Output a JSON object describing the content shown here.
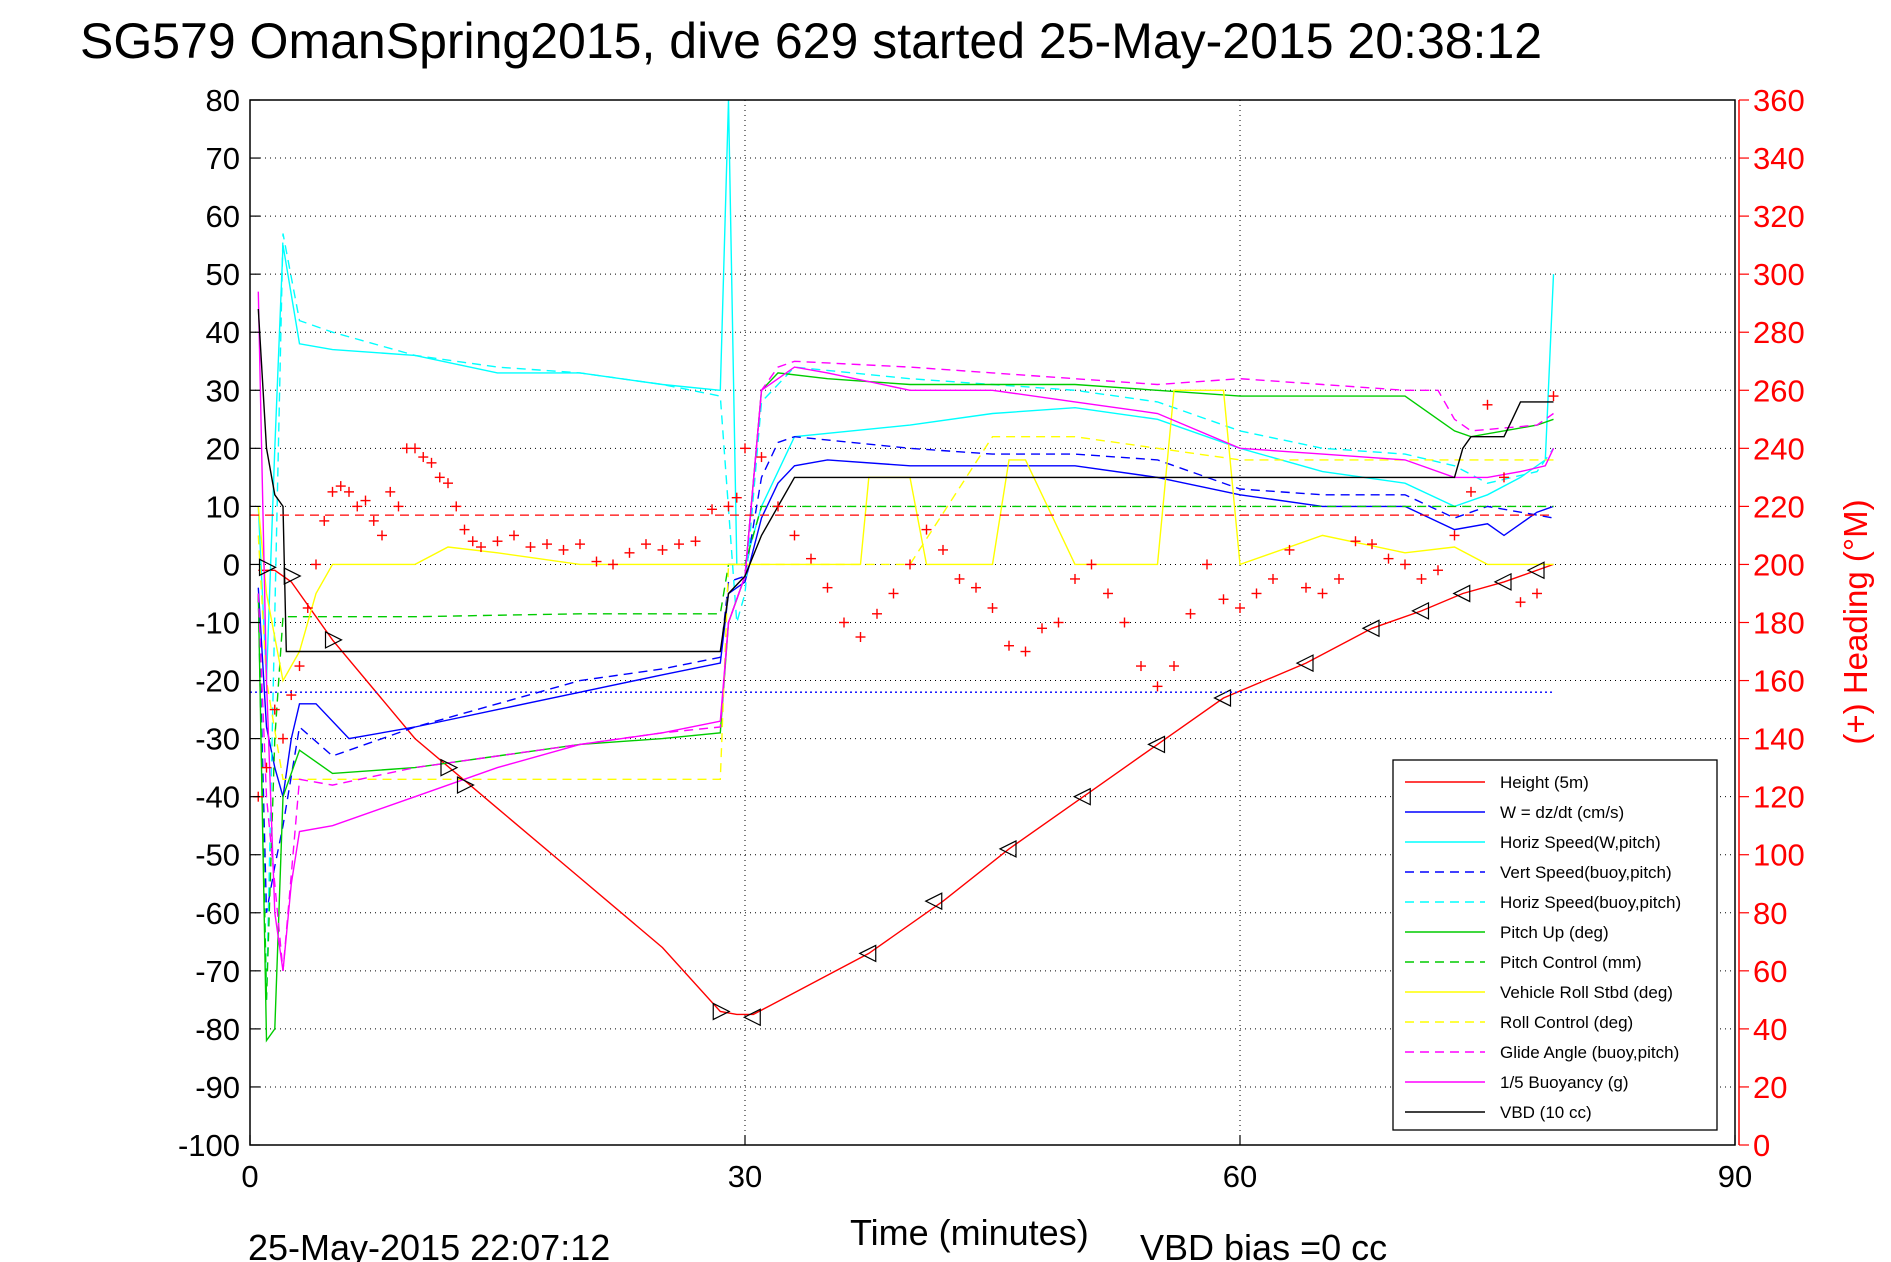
{
  "chart_data": {
    "type": "line",
    "title": "SG579 OmanSpring2015, dive 629 started 25-May-2015 20:38:12",
    "xlabel": "Time (minutes)",
    "ylabel_right": "(+) Heading (°M)",
    "xlim": [
      0,
      90
    ],
    "ylim": [
      -100,
      80
    ],
    "y2lim": [
      0,
      360
    ],
    "x_ticks": [
      "0",
      "30",
      "60",
      "90"
    ],
    "y_ticks": [
      "80",
      "70",
      "60",
      "50",
      "40",
      "30",
      "20",
      "10",
      "0",
      "-10",
      "-20",
      "-30",
      "-40",
      "-50",
      "-60",
      "-70",
      "-80",
      "-90",
      "-100"
    ],
    "y2_ticks": [
      "360",
      "340",
      "320",
      "300",
      "280",
      "260",
      "240",
      "220",
      "200",
      "180",
      "160",
      "140",
      "120",
      "100",
      "80",
      "60",
      "40",
      "20",
      "0"
    ],
    "grid": true,
    "legend_position": "bottom-right",
    "footer_left": "25-May-2015 22:07:12",
    "footer_right": "VBD bias =0 cc",
    "series": [
      {
        "name": "Height (5m)",
        "color": "#ff0000",
        "dash": "solid",
        "x": [
          0.5,
          1.5,
          2.5,
          5,
          10,
          15,
          20,
          25,
          28.5,
          29.5,
          30.5,
          31.5,
          37.5,
          42,
          46,
          50.5,
          55,
          59,
          64,
          68,
          71,
          73.5,
          76,
          79
        ],
        "y": [
          -1,
          -1,
          -3,
          -13,
          -30,
          -42,
          -54,
          -66,
          -77,
          -77.5,
          -77.5,
          -76,
          -67,
          -58,
          -49,
          -40,
          -31,
          -23,
          -17,
          -11,
          -8,
          -5,
          -3,
          0
        ]
      },
      {
        "name": "W = dz/dt (cm/s)",
        "color": "#0000ff",
        "dash": "solid",
        "x": [
          0.5,
          1,
          1.5,
          2,
          2.5,
          3,
          4,
          6,
          10,
          15,
          20,
          25,
          28.5,
          29,
          30,
          31,
          32,
          33,
          35,
          40,
          45,
          50,
          55,
          60,
          65,
          70,
          73,
          75,
          76,
          77,
          78,
          79
        ],
        "y": [
          -4,
          -28,
          -35,
          -40,
          -30,
          -24,
          -24,
          -30,
          -28,
          -25,
          -22,
          -19,
          -17,
          -5,
          -3,
          8,
          14,
          17,
          18,
          17,
          17,
          17,
          15,
          12,
          10,
          10,
          6,
          7,
          5,
          7,
          9,
          10
        ]
      },
      {
        "name": "Horiz Speed(W,pitch)",
        "color": "#00ffff",
        "dash": "solid",
        "x": [
          0.5,
          1,
          1.5,
          2,
          3,
          5,
          10,
          15,
          20,
          25,
          28.5,
          29,
          29.5,
          30,
          31,
          33,
          40,
          45,
          50,
          55,
          60,
          65,
          70,
          73,
          75,
          77,
          78.5,
          79
        ],
        "y": [
          10,
          -20,
          20,
          55,
          38,
          37,
          36,
          33,
          33,
          31,
          30,
          80,
          0,
          0,
          10,
          22,
          24,
          26,
          27,
          25,
          20,
          16,
          14,
          10,
          12,
          15,
          18,
          50
        ]
      },
      {
        "name": "Vert Speed(buoy,pitch)",
        "color": "#0000ff",
        "dash": "dashed",
        "x": [
          0.5,
          1,
          1.5,
          2,
          3,
          5,
          10,
          15,
          20,
          25,
          28.5,
          29,
          30,
          31,
          32,
          33,
          40,
          45,
          50,
          55,
          60,
          65,
          70,
          73,
          75,
          77,
          79
        ],
        "y": [
          -5,
          -60,
          -52,
          -45,
          -28,
          -33,
          -28,
          -24,
          -20,
          -18,
          -16,
          -3,
          -2,
          15,
          21,
          22,
          20,
          19,
          19,
          18,
          13,
          12,
          12,
          8,
          10,
          9,
          8
        ]
      },
      {
        "name": "Horiz Speed(buoy,pitch)",
        "color": "#00ffff",
        "dash": "dashed",
        "x": [
          0.5,
          1,
          2,
          3,
          5,
          10,
          15,
          20,
          25,
          28.5,
          29.5,
          30,
          31,
          33,
          40,
          45,
          50,
          55,
          60,
          65,
          70,
          73,
          75,
          78,
          79
        ],
        "y": [
          -5,
          -75,
          57,
          42,
          40,
          36,
          34,
          33,
          31,
          29,
          -10,
          -5,
          28,
          34,
          32,
          31,
          30,
          28,
          23,
          20,
          19,
          17,
          14,
          16,
          20
        ]
      },
      {
        "name": "Pitch Up (deg)",
        "color": "#00cc00",
        "dash": "solid",
        "x": [
          0.5,
          1,
          1.5,
          2,
          3,
          5,
          10,
          15,
          20,
          25,
          28.5,
          29,
          30,
          31,
          32,
          35,
          40,
          45,
          50,
          55,
          60,
          65,
          70,
          72,
          73,
          74,
          78,
          79
        ],
        "y": [
          -5,
          -82,
          -80,
          -40,
          -32,
          -36,
          -35,
          -33,
          -31,
          -30,
          -29,
          -10,
          -2,
          30,
          33,
          32,
          31,
          31,
          31,
          30,
          29,
          29,
          29,
          25,
          23,
          22,
          24,
          25
        ]
      },
      {
        "name": "Pitch Control (mm)",
        "color": "#00cc00",
        "dash": "dashed",
        "x": [
          0.5,
          1,
          1.5,
          2,
          5,
          10,
          20,
          28.5,
          29,
          30,
          31,
          40,
          50,
          60,
          70,
          73,
          79
        ],
        "y": [
          -5,
          -75,
          -30,
          -9,
          -9,
          -9,
          -8.5,
          -8.5,
          0,
          0,
          10,
          10,
          10,
          10,
          10,
          10,
          10
        ]
      },
      {
        "name": "Vehicle Roll Stbd (deg)",
        "color": "#ffff00",
        "dash": "solid",
        "x": [
          0.5,
          1,
          2,
          3,
          4,
          5,
          10,
          12,
          15,
          20,
          25,
          28.5,
          29,
          30,
          31,
          35,
          37,
          37.5,
          40,
          41,
          42,
          45,
          46,
          47,
          50,
          51,
          55,
          56,
          59,
          60,
          65,
          70,
          73,
          75,
          79
        ],
        "y": [
          10,
          -5,
          -20,
          -15,
          -5,
          0,
          0,
          3,
          2,
          0,
          0,
          0,
          0,
          0,
          0,
          0,
          0,
          15,
          15,
          0,
          0,
          0,
          18,
          18,
          0,
          0,
          0,
          30,
          30,
          0,
          5,
          2,
          3,
          0,
          0
        ]
      },
      {
        "name": "Roll Control (deg)",
        "color": "#ffff00",
        "dash": "dashed",
        "x": [
          0.5,
          1,
          2,
          3,
          4,
          10,
          20,
          28.5,
          29,
          30,
          31,
          40,
          45,
          50,
          55,
          60,
          70,
          79
        ],
        "y": [
          5,
          -20,
          -37,
          -37,
          -37,
          -37,
          -37,
          -37,
          0,
          0,
          0,
          0,
          22,
          22,
          20,
          18,
          18,
          18
        ]
      },
      {
        "name": "Glide Angle (buoy,pitch)",
        "color": "#ff00ff",
        "dash": "dashed",
        "x": [
          0.5,
          1,
          2,
          3,
          5,
          10,
          15,
          20,
          25,
          28.5,
          29,
          30,
          31,
          32,
          33,
          40,
          45,
          50,
          55,
          60,
          65,
          70,
          72,
          73,
          74,
          78,
          79
        ],
        "y": [
          -5,
          -40,
          -70,
          -37,
          -38,
          -35,
          -33,
          -31,
          -29,
          -28,
          -10,
          -2,
          30,
          34,
          35,
          34,
          33,
          32,
          31,
          32,
          31,
          30,
          30,
          25,
          23,
          24,
          26
        ]
      },
      {
        "name": "1/5 Buoyancy (g)",
        "color": "#ff00ff",
        "dash": "solid",
        "x": [
          0.5,
          1,
          1.5,
          2,
          2.5,
          3,
          5,
          10,
          15,
          20,
          25,
          28.5,
          29,
          30,
          31,
          33,
          35,
          40,
          45,
          50,
          55,
          60,
          65,
          70,
          73,
          75,
          77,
          78.5,
          79
        ],
        "y": [
          47,
          -20,
          -60,
          -70,
          -55,
          -46,
          -45,
          -40,
          -35,
          -31,
          -29,
          -27,
          -10,
          -2,
          30,
          34,
          33,
          30,
          30,
          28,
          26,
          20,
          19,
          18,
          15,
          15,
          16,
          17,
          20
        ]
      },
      {
        "name": "VBD (10 cc)",
        "color": "#000000",
        "dash": "solid",
        "x": [
          0.5,
          1,
          1.5,
          2,
          2.2,
          5,
          10,
          20,
          28.5,
          29,
          30,
          31,
          32,
          33,
          40,
          50,
          60,
          70,
          73,
          73.5,
          74,
          75,
          76,
          76.5,
          77,
          78,
          79
        ],
        "y": [
          44,
          20,
          12,
          10,
          -15,
          -15,
          -15,
          -15,
          -15,
          -5,
          -2,
          5,
          10,
          15,
          15,
          15,
          15,
          15,
          15,
          20,
          22,
          22,
          22,
          25,
          28,
          28,
          28
        ]
      }
    ],
    "markers": [
      {
        "name": "Heading",
        "axis": "right",
        "color": "#ff0000",
        "symbol": "+",
        "x": [
          0.5,
          1,
          1.5,
          2,
          2.5,
          3,
          3.5,
          4,
          4.5,
          5,
          5.5,
          6,
          6.5,
          7,
          7.5,
          8,
          8.5,
          9,
          9.5,
          10,
          10.5,
          11,
          11.5,
          12,
          12.5,
          13,
          13.5,
          14,
          15,
          16,
          17,
          18,
          19,
          20,
          21,
          22,
          23,
          24,
          25,
          26,
          27,
          28,
          29,
          29.5,
          30,
          31,
          32,
          33,
          34,
          35,
          36,
          37,
          38,
          39,
          40,
          41,
          42,
          43,
          44,
          45,
          46,
          47,
          48,
          49,
          50,
          51,
          52,
          53,
          54,
          55,
          56,
          57,
          58,
          59,
          60,
          61,
          62,
          63,
          64,
          65,
          66,
          67,
          68,
          69,
          70,
          71,
          72,
          73,
          74,
          75,
          76,
          77,
          78,
          79
        ],
        "y": [
          120,
          130,
          150,
          140,
          155,
          165,
          185,
          200,
          215,
          225,
          227,
          225,
          220,
          222,
          215,
          210,
          225,
          220,
          240,
          240,
          237,
          235,
          230,
          228,
          220,
          212,
          208,
          206,
          208,
          210,
          206,
          207,
          205,
          207,
          201,
          200,
          204,
          207,
          205,
          207,
          208,
          219,
          220,
          223,
          240,
          237,
          220,
          210,
          202,
          192,
          180,
          175,
          183,
          190,
          200,
          212,
          205,
          195,
          192,
          185,
          172,
          170,
          178,
          180,
          195,
          200,
          190,
          180,
          165,
          158,
          165,
          183,
          200,
          188,
          185,
          190,
          195,
          205,
          192,
          190,
          195,
          208,
          207,
          202,
          200,
          195,
          198,
          210,
          225,
          255,
          230,
          187,
          190,
          258
        ]
      },
      {
        "name": "Pitch Control (mm)",
        "axis": "right",
        "color": "#ff0000",
        "symbol": "dashed-line",
        "x": [
          0,
          79
        ],
        "y": [
          217,
          217
        ]
      },
      {
        "name": "VBD markers",
        "axis": "left",
        "color": "#000000",
        "symbol": "triangle",
        "x": [
          1,
          2.5,
          5,
          12,
          13,
          28.5,
          30.5,
          37.5,
          41.5,
          46,
          50.5,
          55,
          59,
          64,
          68,
          71,
          73.5,
          76,
          78
        ],
        "y": [
          -0.5,
          -2,
          -13,
          -35,
          -38,
          -77,
          -78,
          -67,
          -58,
          -49,
          -40,
          -31,
          -23,
          -17,
          -11,
          -8,
          -5,
          -3,
          -1
        ]
      },
      {
        "name": "Blue dotted line",
        "axis": "left",
        "color": "#0000ff",
        "symbol": "dotted-line",
        "x": [
          0,
          79
        ],
        "y": [
          -22,
          -22
        ]
      }
    ]
  }
}
